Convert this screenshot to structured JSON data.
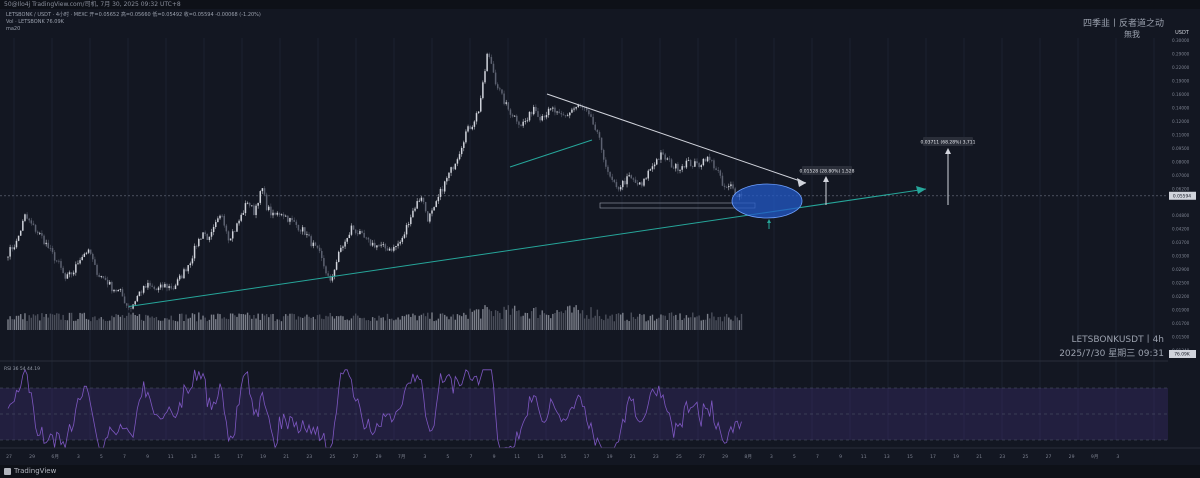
{
  "header": {
    "caption": "50@Ilo4j TradingView.com/司机, 7月 30, 2025 09:32 UTC+8",
    "symbol_line": "LETSBONK / USDT · 4小时 · MEXC  开=0.05652 高=0.05660 低=0.05492 收=0.05594 -0.00068 (-1.20%)",
    "volume_line": "Vol · LETSBONK  76.09K",
    "ma_line": "ma20"
  },
  "watermark": {
    "line1": "四季韭丨反者道之动",
    "line2": "無我",
    "symbol": "LETSBONKUSDT丨4h",
    "datetime": "2025/7/30 星期三 09:31"
  },
  "footer": {
    "brand": "TradingView"
  },
  "chart_data": {
    "type": "candlestick",
    "symbol": "LETSBONK/USDT",
    "exchange": "MEXC",
    "interval": "4h",
    "price_axis": {
      "label": "USDT",
      "scale": "log",
      "ticks": [
        "0.30000",
        "0.29000",
        "0.22000",
        "0.19000",
        "0.16000",
        "0.14000",
        "0.12000",
        "0.11000",
        "0.09500",
        "0.08000",
        "0.07000",
        "0.06200",
        "0.05594",
        "0.04800",
        "0.04200",
        "0.03700",
        "0.03300",
        "0.02900",
        "0.02500",
        "0.02200",
        "0.01900",
        "0.01700",
        "0.01500",
        "0.01340"
      ]
    },
    "last_price": 0.05594,
    "price_path": [
      [
        0,
        0.0305
      ],
      [
        4,
        0.034
      ],
      [
        8,
        0.045
      ],
      [
        12,
        0.04
      ],
      [
        16,
        0.036
      ],
      [
        20,
        0.031
      ],
      [
        24,
        0.027
      ],
      [
        27,
        0.023
      ],
      [
        31,
        0.025
      ],
      [
        34,
        0.029
      ],
      [
        37,
        0.031
      ],
      [
        39,
        0.03
      ],
      [
        41,
        0.026
      ],
      [
        43,
        0.024
      ],
      [
        46,
        0.023
      ],
      [
        49,
        0.021
      ],
      [
        53,
        0.02
      ],
      [
        56,
        0.0175
      ],
      [
        58,
        0.017
      ],
      [
        62,
        0.02
      ],
      [
        66,
        0.0215
      ],
      [
        70,
        0.0205
      ],
      [
        74,
        0.0215
      ],
      [
        78,
        0.021
      ],
      [
        82,
        0.024
      ],
      [
        86,
        0.028
      ],
      [
        89,
        0.0335
      ],
      [
        92,
        0.038
      ],
      [
        95,
        0.035
      ],
      [
        98,
        0.041
      ],
      [
        101,
        0.046
      ],
      [
        104,
        0.036
      ],
      [
        107,
        0.039
      ],
      [
        110,
        0.045
      ],
      [
        113,
        0.053
      ],
      [
        116,
        0.047
      ],
      [
        118,
        0.054
      ],
      [
        120,
        0.06
      ],
      [
        122,
        0.05
      ],
      [
        125,
        0.045
      ],
      [
        129,
        0.047
      ],
      [
        132,
        0.044
      ],
      [
        136,
        0.041
      ],
      [
        140,
        0.038
      ],
      [
        143,
        0.034
      ],
      [
        147,
        0.03
      ],
      [
        150,
        0.025
      ],
      [
        152,
        0.022
      ],
      [
        154,
        0.026
      ],
      [
        157,
        0.032
      ],
      [
        160,
        0.035
      ],
      [
        162,
        0.04
      ],
      [
        166,
        0.037
      ],
      [
        170,
        0.034
      ],
      [
        174,
        0.033
      ],
      [
        178,
        0.032
      ],
      [
        182,
        0.032
      ],
      [
        186,
        0.035
      ],
      [
        189,
        0.043
      ],
      [
        192,
        0.05
      ],
      [
        195,
        0.056
      ],
      [
        198,
        0.044
      ],
      [
        201,
        0.048
      ],
      [
        204,
        0.058
      ],
      [
        207,
        0.067
      ],
      [
        210,
        0.077
      ],
      [
        213,
        0.09
      ],
      [
        216,
        0.11
      ],
      [
        219,
        0.12
      ],
      [
        222,
        0.14
      ],
      [
        224,
        0.18
      ],
      [
        226,
        0.25
      ],
      [
        228,
        0.23
      ],
      [
        230,
        0.19
      ],
      [
        233,
        0.16
      ],
      [
        236,
        0.14
      ],
      [
        239,
        0.13
      ],
      [
        242,
        0.12
      ],
      [
        245,
        0.125
      ],
      [
        248,
        0.145
      ],
      [
        251,
        0.13
      ],
      [
        254,
        0.135
      ],
      [
        257,
        0.14
      ],
      [
        260,
        0.13
      ],
      [
        263,
        0.13
      ],
      [
        266,
        0.14
      ],
      [
        269,
        0.145
      ],
      [
        272,
        0.14
      ],
      [
        276,
        0.12
      ],
      [
        279,
        0.1
      ],
      [
        281,
        0.085
      ],
      [
        283,
        0.07
      ],
      [
        285,
        0.065
      ],
      [
        287,
        0.06
      ],
      [
        290,
        0.064
      ],
      [
        293,
        0.068
      ],
      [
        296,
        0.064
      ],
      [
        299,
        0.062
      ],
      [
        302,
        0.072
      ],
      [
        305,
        0.08
      ],
      [
        308,
        0.086
      ],
      [
        311,
        0.082
      ],
      [
        314,
        0.076
      ],
      [
        317,
        0.076
      ],
      [
        320,
        0.08
      ],
      [
        323,
        0.078
      ],
      [
        326,
        0.078
      ],
      [
        329,
        0.084
      ],
      [
        332,
        0.08
      ],
      [
        335,
        0.072
      ],
      [
        337,
        0.062
      ],
      [
        339,
        0.06
      ],
      [
        341,
        0.062
      ],
      [
        343,
        0.058
      ],
      [
        346,
        0.0559
      ]
    ],
    "volume_axis_last": "76.09K",
    "annotations": {
      "flag_label": "0.01528 (28.80%) 1,528",
      "target_label": "0.03711 (68.28%) 3,711"
    },
    "rsi": {
      "label": "RSI",
      "params": "36 54",
      "value": "44.19",
      "levels": [
        "80.00",
        "70.00",
        "60.00",
        "50.00",
        "40.00",
        "30.00"
      ],
      "right_labels": [
        "44.19",
        "36.65",
        "36.54"
      ]
    },
    "time_axis": [
      "27",
      "29",
      "6月",
      "3",
      "5",
      "7",
      "9",
      "11",
      "13",
      "15",
      "17",
      "19",
      "21",
      "23",
      "25",
      "27",
      "29",
      "7月",
      "3",
      "5",
      "7",
      "9",
      "11",
      "13",
      "15",
      "17",
      "19",
      "21",
      "23",
      "25",
      "27",
      "29",
      "8月",
      "3",
      "5",
      "7",
      "9",
      "11",
      "13",
      "15",
      "17",
      "19",
      "21",
      "23",
      "25",
      "27",
      "29",
      "9月",
      "3"
    ]
  }
}
